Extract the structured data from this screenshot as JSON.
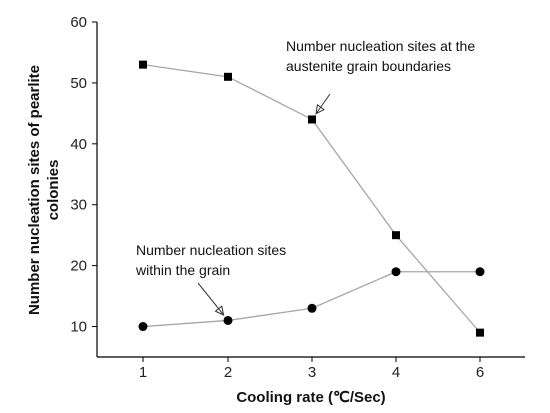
{
  "chart_data": {
    "type": "line",
    "categories": [
      "1",
      "2",
      "3",
      "4",
      "6"
    ],
    "xlabel": "Cooling rate (℃/Sec)",
    "ylabel_line1": "Number nucleation sites of pearlite",
    "ylabel_line2": "colonies",
    "ylim": [
      5,
      60
    ],
    "yticks": [
      10,
      20,
      30,
      40,
      50,
      60
    ],
    "grid": false,
    "series": [
      {
        "name": "Number nucleation sites at the austenite grain boundaries",
        "marker": "square",
        "values": [
          53,
          51,
          44,
          25,
          9
        ]
      },
      {
        "name": "Number nucleation sites within the grain",
        "marker": "circle",
        "values": [
          10,
          11,
          13,
          19,
          19
        ]
      }
    ],
    "annotations": [
      {
        "lines": [
          "Number nucleation sites at the",
          "austenite grain boundaries"
        ],
        "target_series": 0,
        "target_index": 2
      },
      {
        "lines": [
          "Number nucleation sites",
          "within the grain"
        ],
        "target_series": 1,
        "target_index": 1
      }
    ],
    "colors": {
      "line": "#a6a6a6",
      "marker": "#000000",
      "axis": "#000000"
    }
  }
}
